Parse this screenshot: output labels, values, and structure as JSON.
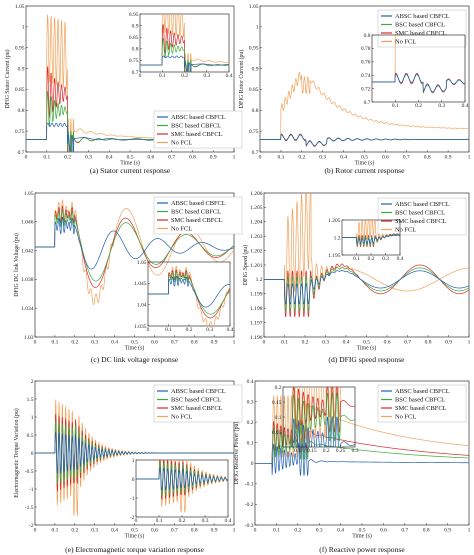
{
  "colors": {
    "ABSC": "#1f5fb4",
    "BSC": "#3daa3d",
    "SMC": "#d42a2a",
    "NoFCL": "#f2a25a"
  },
  "chart_data": [
    {
      "id": "a",
      "type": "line",
      "caption": "(a) Stator current response",
      "ylabel": "DFIG Stator Current (pu)",
      "xlabel": "Time (s)",
      "xlim": [
        0,
        1
      ],
      "ylim": [
        0.7,
        1.05
      ],
      "xticks": [
        0,
        0.1,
        0.2,
        0.3,
        0.4,
        0.5,
        0.6,
        0.7,
        0.8,
        0.9,
        1
      ],
      "yticks": [
        0.7,
        0.75,
        0.8,
        0.85,
        0.9,
        0.95,
        1,
        1.05
      ],
      "ytick_labels": [
        "0.7",
        "0.75",
        "0.8",
        "0.85",
        "0.9",
        "0.95",
        "1",
        "1.05"
      ],
      "legend": [
        "ABSC based CBFCL",
        "BSC based CBFCL",
        "SMC based CBFCL",
        "No FCL"
      ],
      "legend_position": "lower-right",
      "inset": {
        "xlim": [
          0,
          0.4
        ],
        "ylim": [
          0.7,
          0.95
        ],
        "xticks": [
          0,
          0.1,
          0.2,
          0.3,
          0.4
        ],
        "yticks": [
          0.7,
          0.75,
          0.8,
          0.85,
          0.9,
          0.95
        ],
        "ytick_labels": [
          "0.7",
          "0.75",
          "0.8",
          "0.85",
          "0.9",
          "0.95"
        ],
        "position": "top-right"
      }
    },
    {
      "id": "b",
      "type": "line",
      "caption": "(b) Rotor current response",
      "ylabel": "DFIG Rotor Current (pu)",
      "xlabel": "Time (s)",
      "xlim": [
        0,
        1
      ],
      "ylim": [
        0.7,
        1.05
      ],
      "xticks": [
        0,
        0.1,
        0.2,
        0.3,
        0.4,
        0.5,
        0.6,
        0.7,
        0.8,
        0.9,
        1
      ],
      "yticks": [
        0.7,
        0.75,
        0.8,
        0.85,
        0.9,
        0.95,
        1,
        1.05
      ],
      "ytick_labels": [
        "0.7",
        "0.75",
        "0.8",
        "0.85",
        "0.9",
        "0.95",
        "1",
        "1.05"
      ],
      "legend": [
        "ABSC based CBFCL",
        "BSC based CBFCL",
        "SMC based CBFCL",
        "No FCL"
      ],
      "legend_position": "top-right",
      "inset": {
        "xlim": [
          0,
          0.4
        ],
        "ylim": [
          0.7,
          0.8
        ],
        "xticks": [
          0.1,
          0.2,
          0.3,
          0.4
        ],
        "yticks": [
          0.7,
          0.72,
          0.74,
          0.76,
          0.78,
          0.8
        ],
        "ytick_labels": [
          "0.7",
          "0.72",
          "0.74",
          "0.76",
          "0.78",
          "0.8"
        ],
        "position": "top-right"
      }
    },
    {
      "id": "c",
      "type": "line",
      "caption": "(c) DC link voltage response",
      "ylabel": "DFIG DC link Voltage (pu)",
      "xlabel": "Time (s)",
      "xlim": [
        0,
        1
      ],
      "ylim": [
        1.03,
        1.05
      ],
      "xticks": [
        0,
        0.1,
        0.2,
        0.3,
        0.4,
        0.5,
        0.6,
        0.7,
        0.8,
        0.9,
        1
      ],
      "yticks": [
        1.03,
        1.034,
        1.038,
        1.042,
        1.046,
        1.05
      ],
      "ytick_labels": [
        "1.03",
        "1.034",
        "1.038",
        "1.042",
        "1.046",
        "1.05"
      ],
      "legend": [
        "ABSC based CBFCL",
        "BSC based CBFCL",
        "SMC based CBFCL",
        "No FCL"
      ],
      "legend_position": "top-right",
      "inset": {
        "xlim": [
          0,
          0.4
        ],
        "ylim": [
          1.035,
          1.05
        ],
        "xticks": [
          0,
          0.1,
          0.2,
          0.3,
          0.4
        ],
        "yticks": [
          1.035,
          1.04,
          1.045,
          1.05
        ],
        "ytick_labels": [
          "1.035",
          "1.04",
          "1.045",
          "1.05"
        ],
        "position": "lower-right"
      }
    },
    {
      "id": "d",
      "type": "line",
      "caption": "(d) DFIG speed response",
      "ylabel": "DFIG Speed (pu)",
      "xlabel": "Time (s)",
      "xlim": [
        0,
        1
      ],
      "ylim": [
        1.196,
        1.206
      ],
      "xticks": [
        0,
        0.1,
        0.2,
        0.3,
        0.4,
        0.5,
        0.6,
        0.7,
        0.8,
        0.9,
        1
      ],
      "yticks": [
        1.196,
        1.197,
        1.198,
        1.199,
        1.2,
        1.201,
        1.202,
        1.203,
        1.204,
        1.205,
        1.206
      ],
      "ytick_labels": [
        "1.196",
        "1.197",
        "1.198",
        "1.199",
        "1.2",
        "1.201",
        "1.202",
        "1.203",
        "1.204",
        "1.205",
        "1.206"
      ],
      "legend": [
        "ABSC based CBFCL",
        "BSC based CBFCL",
        "SMC based CBFCL",
        "No FCL"
      ],
      "legend_position": "top-right",
      "inset": {
        "xlim": [
          0,
          0.4
        ],
        "ylim": [
          1.195,
          1.205
        ],
        "xticks": [
          0.1,
          0.2,
          0.3,
          0.4
        ],
        "yticks": [
          1.195,
          1.2,
          1.205
        ],
        "ytick_labels": [
          "1.195",
          "1.2",
          "1.205"
        ],
        "position": "top-middle"
      }
    },
    {
      "id": "e",
      "type": "line",
      "caption": "(e) Electromagnetic torque variation response",
      "ylabel": "Electromagnetic Torque Variation (pu)",
      "xlabel": "Time (s)",
      "xlim": [
        0,
        1
      ],
      "ylim": [
        -2,
        2
      ],
      "xticks": [
        0,
        0.1,
        0.2,
        0.3,
        0.4,
        0.5,
        0.6,
        0.7,
        0.8,
        0.9,
        1
      ],
      "yticks": [
        -2,
        -1.5,
        -1,
        -0.5,
        0,
        0.5,
        1,
        1.5,
        2
      ],
      "ytick_labels": [
        "-2",
        "-1.5",
        "-1",
        "-0.5",
        "0",
        "0.5",
        "1",
        "1.5",
        "2"
      ],
      "legend": [
        "ABSC based CBFCL",
        "BSC based CBFCL",
        "SMC based CBFCL",
        "No FCL"
      ],
      "legend_position": "top-right",
      "inset": {
        "xlim": [
          0,
          0.4
        ],
        "ylim": [
          -2,
          1
        ],
        "xticks": [
          0,
          0.1,
          0.2,
          0.3,
          0.4
        ],
        "yticks": [
          -2,
          -1,
          0,
          1
        ],
        "ytick_labels": [
          "-2",
          "-1",
          "0",
          "1"
        ],
        "position": "lower-right"
      }
    },
    {
      "id": "f",
      "type": "line",
      "caption": "(f) Reactive power response",
      "ylabel": "DFIG Reactive Power (pu)",
      "xlabel": "Time (s)",
      "xlim": [
        0,
        1
      ],
      "ylim": [
        -0.3,
        0.4
      ],
      "xticks": [
        0,
        0.1,
        0.2,
        0.3,
        0.4,
        0.5,
        0.6,
        0.7,
        0.8,
        0.9,
        1
      ],
      "yticks": [
        -0.3,
        -0.2,
        -0.1,
        0,
        0.1,
        0.2,
        0.3,
        0.4
      ],
      "ytick_labels": [
        "-0.3",
        "-0.2",
        "-0.1",
        "0",
        "0.1",
        "0.2",
        "0.3",
        "0.4"
      ],
      "legend": [
        "ABSC based CBFCL",
        "BSC based CBFCL",
        "SMC based CBFCL",
        "No FCL"
      ],
      "legend_position": "top-right",
      "inset": {
        "xlim": [
          0.05,
          0.3
        ],
        "ylim": [
          0,
          0.2
        ],
        "xticks": [
          0.1,
          0.15,
          0.2,
          0.25,
          0.3
        ],
        "yticks": [
          0,
          0.05,
          0.1,
          0.15,
          0.2
        ],
        "ytick_labels": [
          "0",
          "0.05",
          "0.1",
          "0.15",
          "0.2"
        ],
        "position": "top-left"
      }
    }
  ]
}
